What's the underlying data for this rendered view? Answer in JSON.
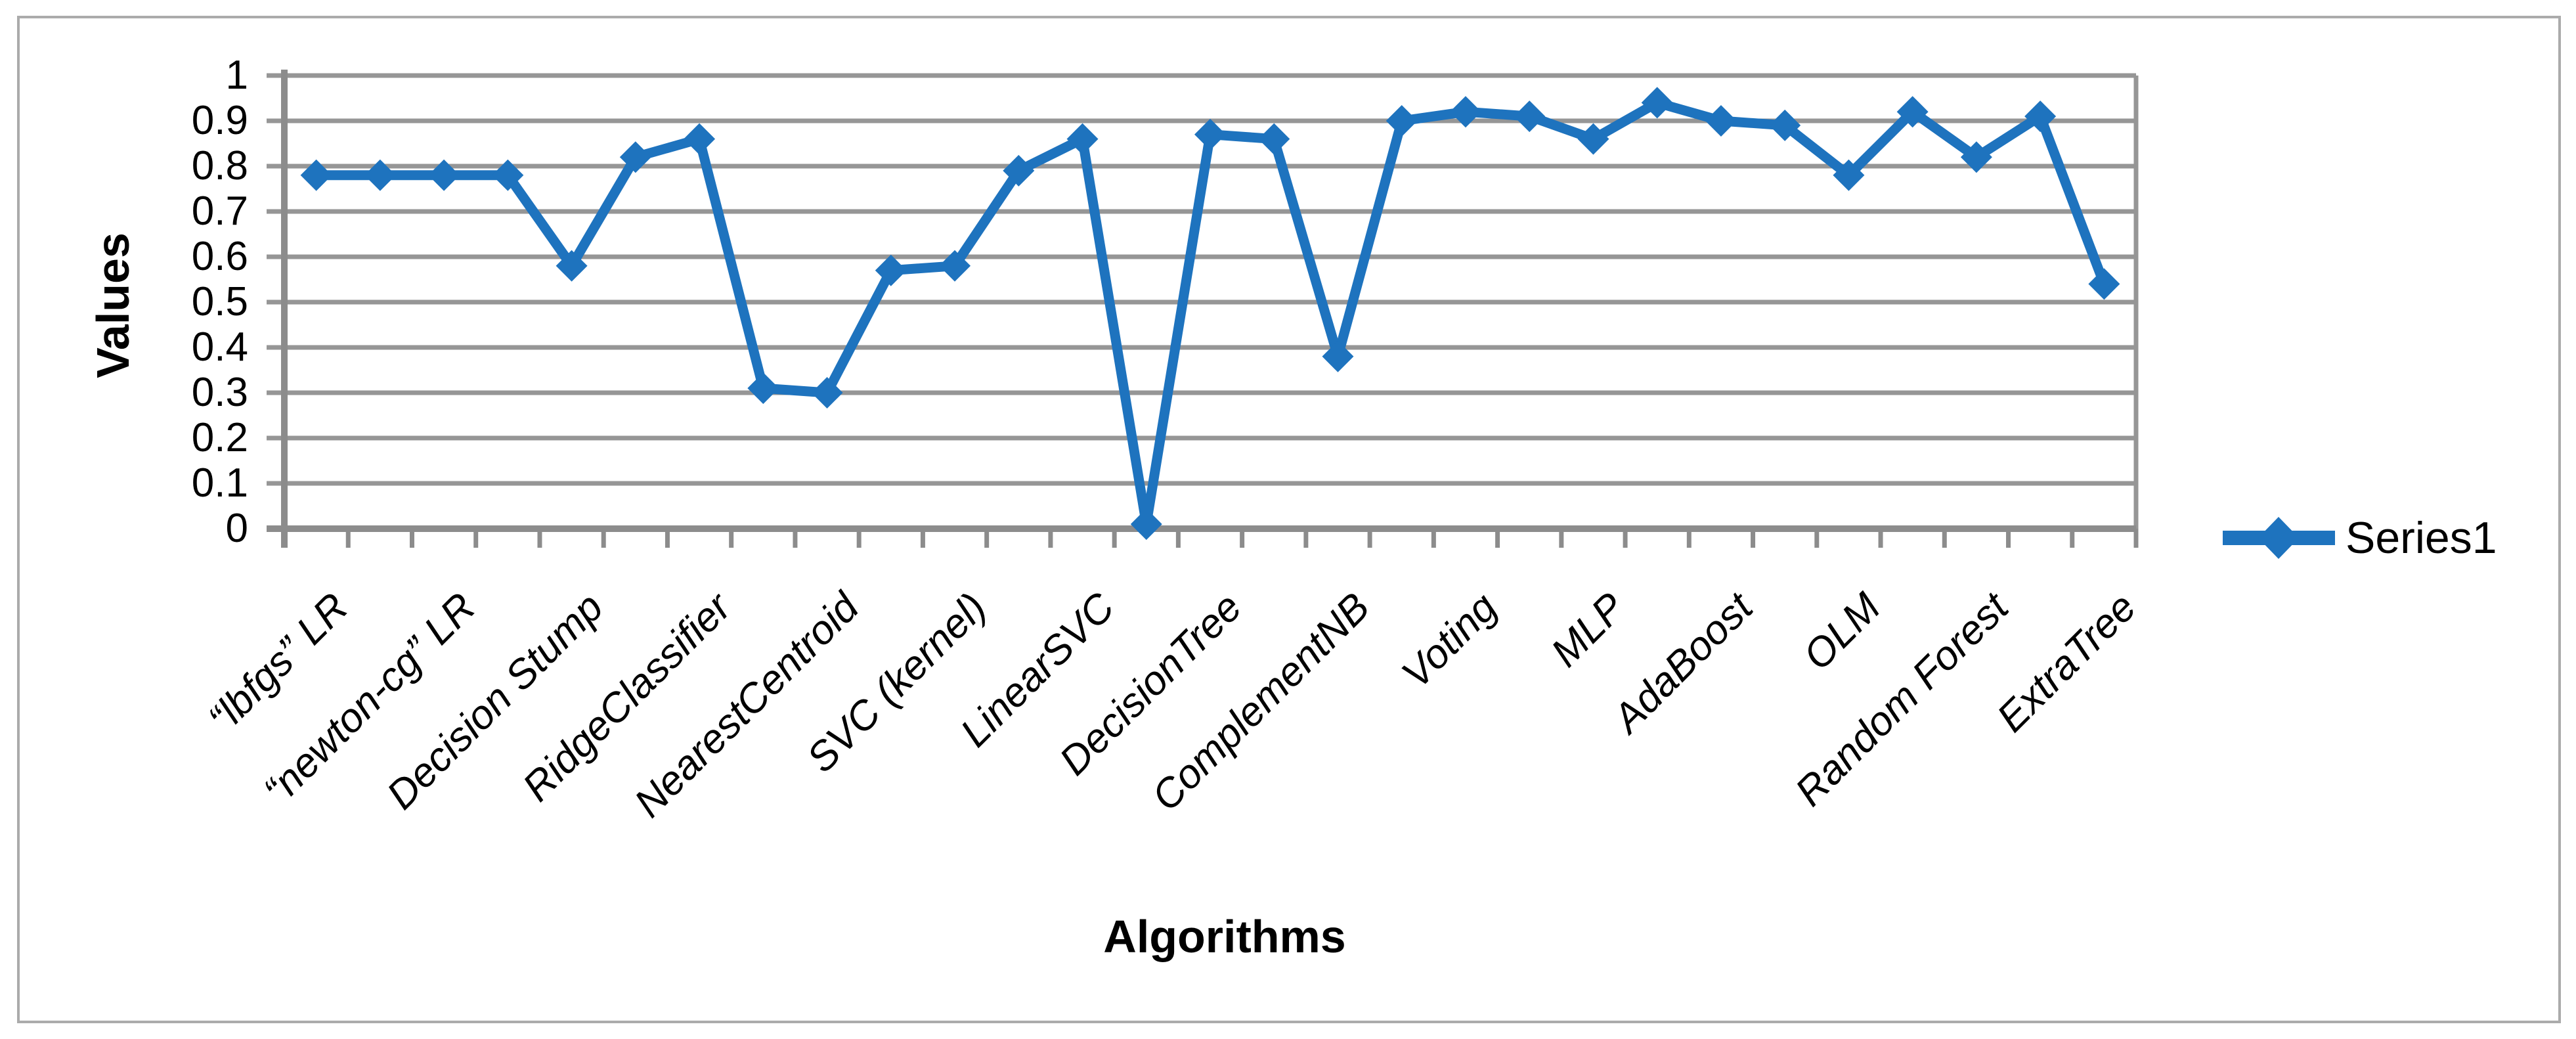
{
  "chart_data": {
    "type": "line",
    "title": "",
    "xlabel": "Algorithms",
    "ylabel": "Values",
    "ylim": [
      0,
      1
    ],
    "ytick_labels": [
      "1",
      "0.9",
      "0.8",
      "0.7",
      "0.6",
      "0.5",
      "0.4",
      "0.3",
      "0.2",
      "0.1",
      "0"
    ],
    "grid": "horizontal",
    "legend_position": "right-middle",
    "num_points": 29,
    "category_labels_shown_every_other_point": true,
    "x_axis_tick_count": 30,
    "categories": [
      "“lbfgs” LR",
      "“newton-cg” LR",
      "Decision Stump",
      "RidgeClassifier",
      "NearestCentroid",
      "SVC (kernel)",
      "LinearSVC",
      "DecisionTree",
      "ComplementNB",
      "Voting",
      "MLP",
      "AdaBoost",
      "OLM",
      "Random Forest",
      "ExtraTree"
    ],
    "series": [
      {
        "name": "Series1",
        "color": "#1E73BE",
        "marker": "diamond",
        "values": [
          0.78,
          0.78,
          0.78,
          0.78,
          0.58,
          0.82,
          0.86,
          0.31,
          0.3,
          0.57,
          0.58,
          0.79,
          0.86,
          0.01,
          0.87,
          0.86,
          0.38,
          0.9,
          0.92,
          0.91,
          0.86,
          0.94,
          0.9,
          0.89,
          0.78,
          0.92,
          0.82,
          0.91,
          0.54
        ]
      }
    ]
  },
  "colors": {
    "series_blue": "#1E73BE",
    "gridline_gray": "#969696",
    "axis_gray": "#8c8c8c",
    "frame_border_gray": "#ababab",
    "text_black": "#000000",
    "background_white": "#ffffff"
  }
}
